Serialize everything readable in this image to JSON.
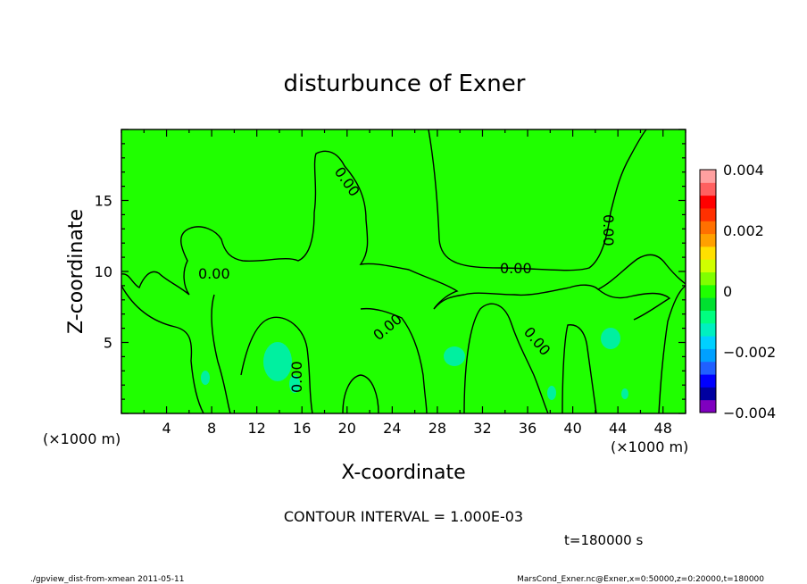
{
  "chart_data": {
    "type": "heatmap",
    "title": "disturbunce of Exner",
    "xlabel": "X-coordinate",
    "ylabel": "Z-coordinate",
    "x_unit": "(×1000 m)",
    "z_unit": "(×1000 m)",
    "xlim": [
      0,
      50
    ],
    "ylim": [
      0,
      20
    ],
    "x_ticks": [
      4,
      8,
      12,
      16,
      20,
      24,
      28,
      32,
      36,
      40,
      44,
      48
    ],
    "y_ticks": [
      5,
      10,
      15
    ],
    "contour_labels": [
      "0.00"
    ],
    "colorbar": {
      "range": [
        -0.004,
        0.004
      ],
      "tick_values": [
        0.004,
        0.002,
        0,
        -0.002,
        -0.004
      ],
      "tick_labels": [
        "0.004",
        "0.002",
        "0",
        "−0.002",
        "−0.004"
      ],
      "colors": [
        "#7f00bf",
        "#0000a0",
        "#0000ff",
        "#2060ff",
        "#00a0ff",
        "#00d0ff",
        "#00f0c0",
        "#00ff80",
        "#00e030",
        "#20ff00",
        "#80ff00",
        "#d0ff00",
        "#ffe000",
        "#ffa000",
        "#ff7000",
        "#ff3000",
        "#ff0000",
        "#ff6060",
        "#ffa0a0"
      ]
    },
    "field_color": "#20ff00",
    "weak_negative_color": "#00f0a0"
  },
  "annotations": {
    "contour_interval": "CONTOUR INTERVAL = 1.000E-03",
    "time": "t=180000 s",
    "footer_left": "./gpview_dist-from-xmean  2011-05-11",
    "footer_right": "MarsCond_Exner.nc@Exner,x=0:50000,z=0:20000,t=180000"
  }
}
